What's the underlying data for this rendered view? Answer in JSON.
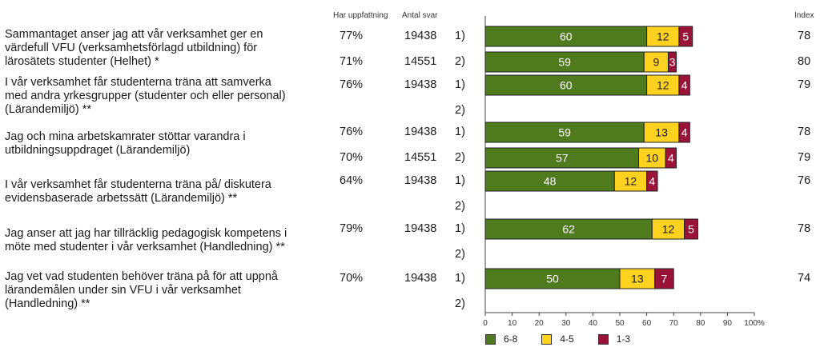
{
  "headers": {
    "perception": "Har uppfattning",
    "answers": "Antal svar",
    "index": "Index"
  },
  "questions": [
    {
      "text": "Sammantaget anser jag att vår verksamhet ger en\nvärdefull VFU (verksamhetsförlagd utbildning) för\nlärosätets studenter (Helhet) *",
      "rows": [
        {
          "wave": "1)",
          "pct": "77%",
          "count": "19438",
          "index": "78"
        },
        {
          "wave": "2)",
          "pct": "71%",
          "count": "14551",
          "index": "80"
        }
      ]
    },
    {
      "text": "I vår verksamhet får studenterna träna att samverka\nmed andra yrkesgrupper (studenter och eller personal)\n(Lärandemiljö) **",
      "rows": [
        {
          "wave": "1)",
          "pct": "76%",
          "count": "19438",
          "index": "79"
        },
        {
          "wave": "2)",
          "pct": "",
          "count": "",
          "index": ""
        }
      ]
    },
    {
      "text": "Jag och mina arbetskamrater stöttar varandra i\nutbildningsuppdraget (Lärandemiljö)",
      "rows": [
        {
          "wave": "1)",
          "pct": "76%",
          "count": "19438",
          "index": "78"
        },
        {
          "wave": "2)",
          "pct": "70%",
          "count": "14551",
          "index": "79"
        }
      ]
    },
    {
      "text": "I vår verksamhet får studenterna träna på/ diskutera\nevidensbaserade arbetssätt (Lärandemiljö) **",
      "rows": [
        {
          "wave": "1)",
          "pct": "64%",
          "count": "19438",
          "index": "76"
        },
        {
          "wave": "2)",
          "pct": "",
          "count": "",
          "index": ""
        }
      ]
    },
    {
      "text": "Jag anser att jag har tillräcklig pedagogisk kompetens i\nmöte med studenter i vår verksamhet (Handledning) **",
      "rows": [
        {
          "wave": "1)",
          "pct": "79%",
          "count": "19438",
          "index": "78"
        },
        {
          "wave": "2)",
          "pct": "",
          "count": "",
          "index": ""
        }
      ]
    },
    {
      "text": "Jag vet  vad studenten behöver träna på för att uppnå\nlärandemålen under sin VFU i vår verksamhet\n(Handledning) **",
      "rows": [
        {
          "wave": "1)",
          "pct": "70%",
          "count": "19438",
          "index": "74"
        },
        {
          "wave": "2)",
          "pct": "",
          "count": "",
          "index": ""
        }
      ]
    }
  ],
  "chart_data": {
    "type": "bar",
    "orientation": "horizontal",
    "stacked": true,
    "xlim": [
      0,
      100
    ],
    "xticks": [
      "0",
      "10",
      "20",
      "30",
      "40",
      "50",
      "60",
      "70",
      "80",
      "90",
      "100%"
    ],
    "grid": false,
    "legend_position": "bottom",
    "series": [
      {
        "name": "6-8",
        "color": "#4f7a1e"
      },
      {
        "name": "4-5",
        "color": "#ffd21f"
      },
      {
        "name": "1-3",
        "color": "#9b1239"
      }
    ],
    "bars": [
      {
        "row": 0,
        "values": [
          60,
          12,
          5
        ]
      },
      {
        "row": 1,
        "values": [
          59,
          9,
          3
        ]
      },
      {
        "row": 2,
        "values": [
          60,
          12,
          4
        ]
      },
      {
        "row": 4,
        "values": [
          59,
          13,
          4
        ]
      },
      {
        "row": 5,
        "values": [
          57,
          10,
          4
        ]
      },
      {
        "row": 6,
        "values": [
          48,
          12,
          4
        ]
      },
      {
        "row": 8,
        "values": [
          62,
          12,
          5
        ]
      },
      {
        "row": 10,
        "values": [
          50,
          13,
          7
        ]
      }
    ]
  }
}
